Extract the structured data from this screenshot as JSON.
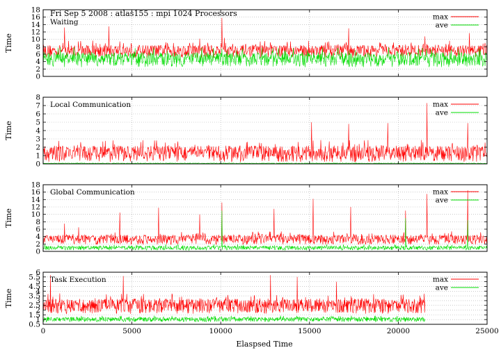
{
  "figure": {
    "title": "Fri Sep 5 2008 : atlas155 : mpi 1024 Processors",
    "xlabel": "Elaspsed Time"
  },
  "colors": {
    "max": "#ff0000",
    "ave": "#00dd00",
    "grid": "#aaaaaa"
  },
  "chart_data": [
    {
      "type": "line",
      "title": "Waiting",
      "ylabel": "Time",
      "xlim": [
        0,
        25000
      ],
      "ylim": [
        0,
        18
      ],
      "yticks": [
        0,
        2,
        4,
        6,
        8,
        10,
        12,
        14,
        16,
        18
      ],
      "xticks": [
        0,
        5000,
        10000,
        15000,
        20000,
        25000
      ],
      "grid": true,
      "legend": "top-right",
      "series": [
        {
          "name": "max",
          "color": "#ff0000",
          "x_end": 25000,
          "typical_range": [
            5,
            8.5
          ],
          "spikes": [
            [
              1200,
              13.2
            ],
            [
              3700,
              13.5
            ],
            [
              8800,
              10.2
            ],
            [
              10050,
              15.8
            ],
            [
              10200,
              10.4
            ],
            [
              17200,
              13.0
            ],
            [
              21500,
              10.8
            ],
            [
              24000,
              11.7
            ]
          ]
        },
        {
          "name": "ave",
          "color": "#00dd00",
          "x_end": 25000,
          "typical_range": [
            2.5,
            6.5
          ],
          "spikes": [
            [
              10050,
              7.5
            ],
            [
              17200,
              7.0
            ]
          ]
        }
      ]
    },
    {
      "type": "line",
      "title": "Local Communication",
      "ylabel": "Time",
      "xlim": [
        0,
        25000
      ],
      "ylim": [
        0,
        8
      ],
      "yticks": [
        0,
        1,
        2,
        3,
        4,
        5,
        6,
        7,
        8
      ],
      "xticks": [
        0,
        5000,
        10000,
        15000,
        20000,
        25000
      ],
      "grid": true,
      "legend": "top-right",
      "series": [
        {
          "name": "max",
          "color": "#ff0000",
          "x_end": 25000,
          "typical_range": [
            0.2,
            2.2
          ],
          "spikes": [
            [
              15100,
              5.0
            ],
            [
              17200,
              4.8
            ],
            [
              19400,
              4.9
            ],
            [
              21600,
              7.3
            ],
            [
              23900,
              4.9
            ]
          ]
        },
        {
          "name": "ave",
          "color": "#00dd00",
          "x_end": 25000,
          "typical_range": [
            0.02,
            0.1
          ],
          "spikes": []
        }
      ]
    },
    {
      "type": "line",
      "title": "Global Communication",
      "ylabel": "Time",
      "xlim": [
        0,
        25000
      ],
      "ylim": [
        0,
        18
      ],
      "yticks": [
        0,
        2,
        4,
        6,
        8,
        10,
        12,
        14,
        16,
        18
      ],
      "xticks": [
        0,
        5000,
        10000,
        15000,
        20000,
        25000
      ],
      "grid": true,
      "legend": "top-right",
      "series": [
        {
          "name": "max",
          "color": "#ff0000",
          "x_end": 25000,
          "typical_range": [
            1.8,
            4.5
          ],
          "spikes": [
            [
              1200,
              7.5
            ],
            [
              2000,
              6.5
            ],
            [
              4300,
              10.5
            ],
            [
              6500,
              11.8
            ],
            [
              8800,
              10.0
            ],
            [
              10050,
              13.2
            ],
            [
              13000,
              11.5
            ],
            [
              15200,
              14.2
            ],
            [
              17300,
              12.0
            ],
            [
              20400,
              11.0
            ],
            [
              21600,
              15.5
            ],
            [
              23900,
              16.5
            ]
          ]
        },
        {
          "name": "ave",
          "color": "#00dd00",
          "x_end": 25000,
          "typical_range": [
            0.3,
            1.5
          ],
          "spikes": [
            [
              10050,
              11.0
            ],
            [
              20400,
              9.0
            ],
            [
              23900,
              8.5
            ]
          ]
        }
      ]
    },
    {
      "type": "line",
      "title": "Task Execution",
      "ylabel": "Time",
      "xlim": [
        0,
        25000
      ],
      "ylim": [
        0.5,
        6
      ],
      "yticks": [
        0.5,
        1,
        1.5,
        2,
        2.5,
        3,
        3.5,
        4,
        4.5,
        5,
        5.5,
        6
      ],
      "xticks": [
        0,
        5000,
        10000,
        15000,
        20000,
        25000
      ],
      "xticklabels": [
        "0",
        "5000",
        "10000",
        "15000",
        "20000",
        "25000"
      ],
      "grid": true,
      "legend": "top-right",
      "series": [
        {
          "name": "max",
          "color": "#ff0000",
          "x_end": 21500,
          "typical_range": [
            1.6,
            3.2
          ],
          "spikes": [
            [
              400,
              5.7
            ],
            [
              4500,
              5.6
            ],
            [
              12800,
              5.7
            ],
            [
              14300,
              5.5
            ],
            [
              16500,
              5.0
            ]
          ]
        },
        {
          "name": "ave",
          "color": "#00dd00",
          "x_end": 21500,
          "typical_range": [
            0.75,
            1.25
          ],
          "spikes": []
        }
      ]
    }
  ]
}
